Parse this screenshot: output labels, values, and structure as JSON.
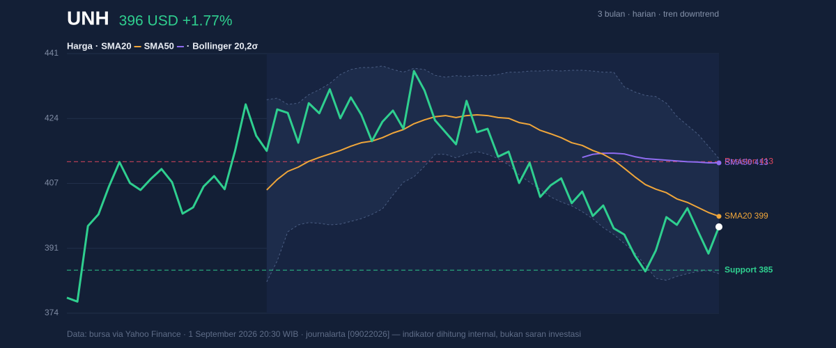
{
  "chart_data": {
    "type": "line",
    "title": "UNH",
    "subtitle": "396 USD +1.77%",
    "note": "3 bulan · harian · tren downtrend",
    "source": "Data: bursa via Yahoo Finance · 1 September 2026 20:30 WIB · journalarta [09022026] — indikator dihitung internal, bukan saran investasi",
    "legend_separator": "·",
    "categories": [
      null,
      null,
      null,
      null,
      null,
      null,
      null,
      null,
      null,
      null,
      null,
      null,
      null,
      null,
      null,
      null,
      null,
      null,
      null,
      null,
      null,
      null,
      null,
      null,
      null,
      null,
      null,
      null,
      null,
      null,
      null,
      null,
      null,
      null,
      null,
      null,
      null,
      null,
      null,
      null,
      null,
      null,
      null,
      null,
      null,
      null,
      null,
      null,
      null,
      null,
      null,
      null,
      null,
      null,
      null,
      null,
      null,
      null,
      null,
      null,
      null,
      null,
      null
    ],
    "ylim": [
      373.9,
      440.9
    ],
    "yticks": [
      {
        "value": 373.9,
        "label": "374"
      },
      {
        "value": 390.65,
        "label": "391"
      },
      {
        "value": 407.4,
        "label": "407"
      },
      {
        "value": 424.15,
        "label": "424"
      },
      {
        "value": 440.9,
        "label": "441"
      }
    ],
    "grid": true,
    "series": [
      {
        "name": "Harga",
        "color": "#2fcf8f",
        "values": [
          377.9,
          376.9,
          396.4,
          399.4,
          406.6,
          412.9,
          407.5,
          405.7,
          408.6,
          411.1,
          407.7,
          399.6,
          401.2,
          406.6,
          409.3,
          405.9,
          415.9,
          427.8,
          419.7,
          415.8,
          426.5,
          425.6,
          417.9,
          428.1,
          425.5,
          431.7,
          424.2,
          429.6,
          425.1,
          418.3,
          423.3,
          426.2,
          421.5,
          436.4,
          431.4,
          423.7,
          420.6,
          417.5,
          428.7,
          420.6,
          421.5,
          414.3,
          415.6,
          407.5,
          412.7,
          403.9,
          406.9,
          408.7,
          402.3,
          405.3,
          399.0,
          401.7,
          395.8,
          394.2,
          388.8,
          384.7,
          390.1,
          398.7,
          396.7,
          401.0,
          395.1,
          389.3,
          396.2
        ]
      },
      {
        "name": "SMA20",
        "color": "#f0a63a",
        "end_label": "SMA20 399",
        "values": [
          null,
          null,
          null,
          null,
          null,
          null,
          null,
          null,
          null,
          null,
          null,
          null,
          null,
          null,
          null,
          null,
          null,
          null,
          null,
          405.7,
          408.4,
          410.5,
          411.6,
          413.1,
          414.1,
          415.0,
          415.9,
          417.0,
          417.9,
          418.3,
          419.2,
          420.4,
          421.3,
          422.8,
          423.8,
          424.6,
          424.9,
          424.4,
          424.9,
          425.1,
          424.9,
          424.4,
          424.2,
          423.1,
          422.6,
          421.1,
          420.2,
          419.2,
          417.9,
          417.2,
          415.9,
          414.9,
          413.4,
          411.3,
          409.1,
          407.1,
          405.9,
          405.0,
          403.4,
          402.5,
          401.2,
          399.9,
          398.9
        ]
      },
      {
        "name": "SMA50",
        "color": "#8f6cf0",
        "end_label": "SMA50 413",
        "values": [
          null,
          null,
          null,
          null,
          null,
          null,
          null,
          null,
          null,
          null,
          null,
          null,
          null,
          null,
          null,
          null,
          null,
          null,
          null,
          null,
          null,
          null,
          null,
          null,
          null,
          null,
          null,
          null,
          null,
          null,
          null,
          null,
          null,
          null,
          null,
          null,
          null,
          null,
          null,
          null,
          null,
          null,
          null,
          null,
          null,
          null,
          null,
          null,
          null,
          414.1,
          414.9,
          415.2,
          415.2,
          415.0,
          414.3,
          413.8,
          413.6,
          413.4,
          413.2,
          413.0,
          412.9,
          412.7,
          412.7
        ]
      }
    ],
    "band": {
      "name": "Bollinger 20,2σ",
      "upper": [
        null,
        null,
        null,
        null,
        null,
        null,
        null,
        null,
        null,
        null,
        null,
        null,
        null,
        null,
        null,
        null,
        null,
        null,
        null,
        429.0,
        429.4,
        427.8,
        428.1,
        430.3,
        431.6,
        433.2,
        435.5,
        436.8,
        437.3,
        437.3,
        437.7,
        436.8,
        436.1,
        437.1,
        436.8,
        435.3,
        434.8,
        435.2,
        435.0,
        435.3,
        435.2,
        435.5,
        436.1,
        436.1,
        436.4,
        436.4,
        436.6,
        436.4,
        436.6,
        436.6,
        436.4,
        436.1,
        436.1,
        432.3,
        431.0,
        430.1,
        429.8,
        428.1,
        424.7,
        422.4,
        420.1,
        417.0,
        413.8
      ],
      "lower": [
        null,
        null,
        null,
        null,
        null,
        null,
        null,
        null,
        null,
        null,
        null,
        null,
        null,
        null,
        null,
        null,
        null,
        null,
        null,
        382.0,
        387.4,
        394.9,
        396.7,
        397.3,
        397.1,
        396.7,
        396.9,
        397.6,
        398.3,
        399.4,
        400.8,
        404.4,
        407.7,
        409.1,
        411.8,
        414.9,
        414.9,
        414.0,
        415.0,
        415.6,
        414.9,
        413.8,
        412.2,
        409.6,
        407.7,
        405.9,
        403.9,
        402.6,
        401.6,
        400.1,
        398.3,
        396.0,
        394.2,
        391.9,
        389.5,
        386.3,
        382.9,
        382.4,
        383.4,
        384.1,
        384.7,
        384.9,
        384.1
      ]
    },
    "reference_lines": [
      {
        "value": 413,
        "label": "Resisten 413",
        "color": "#e5485f"
      },
      {
        "value": 385,
        "label": "Support 385",
        "color": "#2fcf8f"
      }
    ]
  }
}
